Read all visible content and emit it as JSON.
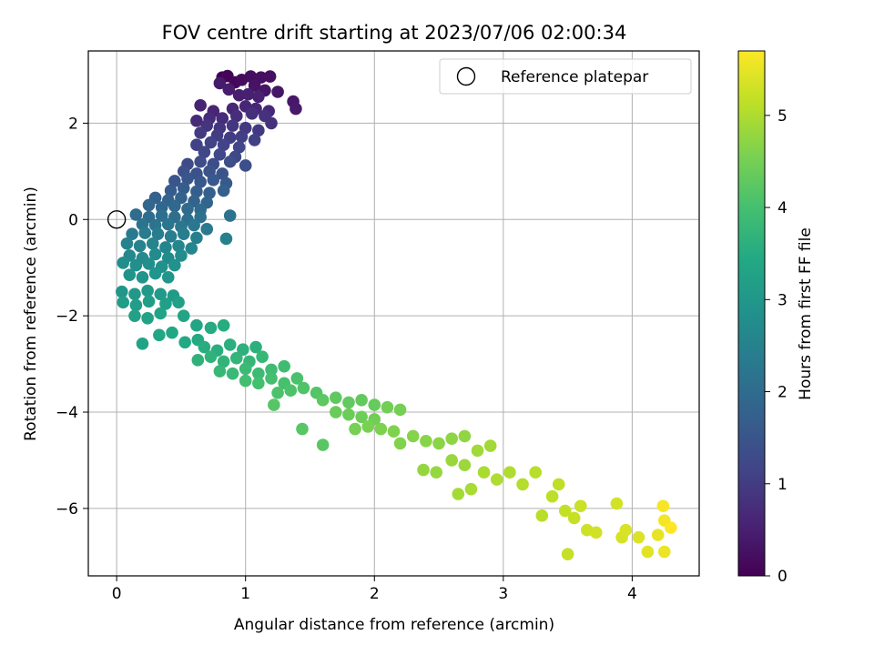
{
  "chart_data": {
    "type": "scatter",
    "title": "FOV centre drift starting at 2023/07/06 02:00:34",
    "xlabel": "Angular distance from reference (arcmin)",
    "ylabel": "Rotation from reference (arcmin)",
    "xlim": [
      -0.22,
      4.52
    ],
    "ylim": [
      -7.4,
      3.5
    ],
    "xticks": [
      0,
      1,
      2,
      3,
      4
    ],
    "yticks": [
      -6,
      -4,
      -2,
      0,
      2
    ],
    "grid": true,
    "legend": {
      "placement": "top-right",
      "entries": [
        "Reference platepar"
      ]
    },
    "reference_point": {
      "x": 0,
      "y": 0
    },
    "colorbar": {
      "label": "Hours from first FF file",
      "range": [
        0,
        5.7
      ],
      "ticks": [
        0,
        1,
        2,
        3,
        4,
        5
      ],
      "colormap": "viridis"
    },
    "series": [
      {
        "points_fields": [
          "x",
          "y",
          "hours"
        ],
        "points": [
          [
            0.82,
            2.95,
            0.0
          ],
          [
            0.86,
            2.98,
            0.05
          ],
          [
            0.92,
            2.85,
            0.1
          ],
          [
            0.97,
            2.9,
            0.15
          ],
          [
            1.04,
            2.97,
            0.2
          ],
          [
            1.12,
            2.95,
            0.22
          ],
          [
            1.19,
            2.97,
            0.25
          ],
          [
            1.07,
            2.78,
            0.3
          ],
          [
            1.15,
            2.68,
            0.32
          ],
          [
            1.25,
            2.65,
            0.35
          ],
          [
            1.37,
            2.45,
            0.38
          ],
          [
            1.39,
            2.3,
            0.4
          ],
          [
            0.8,
            2.83,
            0.42
          ],
          [
            0.87,
            2.7,
            0.45
          ],
          [
            0.95,
            2.58,
            0.48
          ],
          [
            1.02,
            2.6,
            0.5
          ],
          [
            1.1,
            2.55,
            0.52
          ],
          [
            0.65,
            2.37,
            0.55
          ],
          [
            0.75,
            2.25,
            0.58
          ],
          [
            0.9,
            2.3,
            0.6
          ],
          [
            1.0,
            2.35,
            0.6
          ],
          [
            1.08,
            2.3,
            0.62
          ],
          [
            1.18,
            2.25,
            0.65
          ],
          [
            0.62,
            2.05,
            0.68
          ],
          [
            0.72,
            2.1,
            0.7
          ],
          [
            0.82,
            2.1,
            0.72
          ],
          [
            0.93,
            2.15,
            0.75
          ],
          [
            1.05,
            2.2,
            0.78
          ],
          [
            1.15,
            2.15,
            0.8
          ],
          [
            1.2,
            2.0,
            0.82
          ],
          [
            0.7,
            1.95,
            0.85
          ],
          [
            0.8,
            1.9,
            0.88
          ],
          [
            0.9,
            1.95,
            0.9
          ],
          [
            1.0,
            1.9,
            0.92
          ],
          [
            1.1,
            1.85,
            0.95
          ],
          [
            0.65,
            1.8,
            0.98
          ],
          [
            0.78,
            1.75,
            1.0
          ],
          [
            0.88,
            1.7,
            1.02
          ],
          [
            0.97,
            1.72,
            1.05
          ],
          [
            1.07,
            1.65,
            1.08
          ],
          [
            0.62,
            1.55,
            1.1
          ],
          [
            0.73,
            1.6,
            1.12
          ],
          [
            0.83,
            1.55,
            1.15
          ],
          [
            0.95,
            1.5,
            1.18
          ],
          [
            0.68,
            1.4,
            1.2
          ],
          [
            0.8,
            1.35,
            1.22
          ],
          [
            0.92,
            1.3,
            1.25
          ],
          [
            0.55,
            1.15,
            1.28
          ],
          [
            0.65,
            1.2,
            1.3
          ],
          [
            0.75,
            1.15,
            1.32
          ],
          [
            0.88,
            1.2,
            1.35
          ],
          [
            1.0,
            1.12,
            1.38
          ],
          [
            0.52,
            1.0,
            1.4
          ],
          [
            0.62,
            0.95,
            1.42
          ],
          [
            0.72,
            1.0,
            1.45
          ],
          [
            0.82,
            0.95,
            1.48
          ],
          [
            0.45,
            0.8,
            1.5
          ],
          [
            0.55,
            0.85,
            1.52
          ],
          [
            0.65,
            0.78,
            1.55
          ],
          [
            0.75,
            0.82,
            1.58
          ],
          [
            0.85,
            0.75,
            1.6
          ],
          [
            0.42,
            0.6,
            1.62
          ],
          [
            0.52,
            0.65,
            1.65
          ],
          [
            0.62,
            0.58,
            1.68
          ],
          [
            0.72,
            0.55,
            1.7
          ],
          [
            0.83,
            0.6,
            1.72
          ],
          [
            0.3,
            0.45,
            1.75
          ],
          [
            0.4,
            0.4,
            1.78
          ],
          [
            0.5,
            0.45,
            1.8
          ],
          [
            0.6,
            0.38,
            1.82
          ],
          [
            0.7,
            0.35,
            1.85
          ],
          [
            0.25,
            0.3,
            1.88
          ],
          [
            0.35,
            0.25,
            1.9
          ],
          [
            0.45,
            0.28,
            1.92
          ],
          [
            0.55,
            0.22,
            1.95
          ],
          [
            0.65,
            0.2,
            1.98
          ],
          [
            0.15,
            0.1,
            2.0
          ],
          [
            0.25,
            0.05,
            2.02
          ],
          [
            0.35,
            0.08,
            2.05
          ],
          [
            0.45,
            0.05,
            2.08
          ],
          [
            0.55,
            0.0,
            2.1
          ],
          [
            0.65,
            0.05,
            2.12
          ],
          [
            0.88,
            0.08,
            2.15
          ],
          [
            0.2,
            -0.1,
            2.18
          ],
          [
            0.3,
            -0.12,
            2.2
          ],
          [
            0.4,
            -0.1,
            2.22
          ],
          [
            0.5,
            -0.15,
            2.25
          ],
          [
            0.6,
            -0.12,
            2.28
          ],
          [
            0.7,
            -0.2,
            2.3
          ],
          [
            0.12,
            -0.3,
            2.32
          ],
          [
            0.22,
            -0.28,
            2.35
          ],
          [
            0.32,
            -0.3,
            2.38
          ],
          [
            0.42,
            -0.35,
            2.4
          ],
          [
            0.52,
            -0.3,
            2.42
          ],
          [
            0.62,
            -0.38,
            2.45
          ],
          [
            0.85,
            -0.4,
            2.48
          ],
          [
            0.08,
            -0.5,
            2.5
          ],
          [
            0.18,
            -0.55,
            2.52
          ],
          [
            0.28,
            -0.5,
            2.55
          ],
          [
            0.38,
            -0.58,
            2.58
          ],
          [
            0.48,
            -0.55,
            2.6
          ],
          [
            0.58,
            -0.6,
            2.62
          ],
          [
            0.1,
            -0.75,
            2.65
          ],
          [
            0.2,
            -0.8,
            2.68
          ],
          [
            0.3,
            -0.72,
            2.7
          ],
          [
            0.4,
            -0.8,
            2.72
          ],
          [
            0.5,
            -0.75,
            2.75
          ],
          [
            0.05,
            -0.9,
            2.78
          ],
          [
            0.15,
            -0.95,
            2.8
          ],
          [
            0.25,
            -0.92,
            2.82
          ],
          [
            0.35,
            -0.98,
            2.85
          ],
          [
            0.45,
            -0.95,
            2.88
          ],
          [
            0.1,
            -1.15,
            2.9
          ],
          [
            0.2,
            -1.2,
            2.92
          ],
          [
            0.3,
            -1.12,
            2.95
          ],
          [
            0.4,
            -1.2,
            2.98
          ],
          [
            0.04,
            -1.5,
            3.0
          ],
          [
            0.14,
            -1.55,
            3.02
          ],
          [
            0.24,
            -1.48,
            3.05
          ],
          [
            0.34,
            -1.55,
            3.08
          ],
          [
            0.44,
            -1.58,
            3.1
          ],
          [
            0.05,
            -1.72,
            3.12
          ],
          [
            0.15,
            -1.78,
            3.15
          ],
          [
            0.25,
            -1.7,
            3.18
          ],
          [
            0.38,
            -1.75,
            3.2
          ],
          [
            0.48,
            -1.72,
            3.22
          ],
          [
            0.14,
            -2.0,
            3.25
          ],
          [
            0.24,
            -2.05,
            3.28
          ],
          [
            0.34,
            -1.95,
            3.3
          ],
          [
            0.2,
            -2.58,
            3.3
          ],
          [
            0.52,
            -2.0,
            3.32
          ],
          [
            0.62,
            -2.2,
            3.35
          ],
          [
            0.33,
            -2.4,
            3.38
          ],
          [
            0.43,
            -2.35,
            3.4
          ],
          [
            0.53,
            -2.55,
            3.42
          ],
          [
            0.63,
            -2.5,
            3.45
          ],
          [
            0.73,
            -2.25,
            3.48
          ],
          [
            0.83,
            -2.2,
            3.5
          ],
          [
            0.68,
            -2.65,
            3.52
          ],
          [
            0.78,
            -2.72,
            3.55
          ],
          [
            0.88,
            -2.6,
            3.58
          ],
          [
            0.98,
            -2.7,
            3.6
          ],
          [
            1.08,
            -2.65,
            3.62
          ],
          [
            0.63,
            -2.92,
            3.65
          ],
          [
            0.73,
            -2.85,
            3.68
          ],
          [
            0.83,
            -2.95,
            3.7
          ],
          [
            0.93,
            -2.88,
            3.72
          ],
          [
            1.03,
            -2.95,
            3.75
          ],
          [
            1.13,
            -2.85,
            3.78
          ],
          [
            0.8,
            -3.15,
            3.8
          ],
          [
            0.9,
            -3.2,
            3.82
          ],
          [
            1.0,
            -3.1,
            3.85
          ],
          [
            1.1,
            -3.2,
            3.88
          ],
          [
            1.2,
            -3.12,
            3.9
          ],
          [
            1.3,
            -3.05,
            3.92
          ],
          [
            1.0,
            -3.35,
            3.95
          ],
          [
            1.1,
            -3.4,
            3.98
          ],
          [
            1.2,
            -3.3,
            4.0
          ],
          [
            1.3,
            -3.4,
            4.02
          ],
          [
            1.4,
            -3.3,
            4.05
          ],
          [
            1.25,
            -3.6,
            4.08
          ],
          [
            1.35,
            -3.55,
            4.1
          ],
          [
            1.45,
            -3.5,
            4.12
          ],
          [
            1.55,
            -3.6,
            4.15
          ],
          [
            1.22,
            -3.85,
            4.18
          ],
          [
            1.44,
            -4.35,
            4.2
          ],
          [
            1.6,
            -4.68,
            4.22
          ],
          [
            1.6,
            -3.75,
            4.25
          ],
          [
            1.7,
            -3.7,
            4.28
          ],
          [
            1.8,
            -3.8,
            4.3
          ],
          [
            1.9,
            -3.75,
            4.32
          ],
          [
            2.0,
            -3.85,
            4.35
          ],
          [
            1.7,
            -4.0,
            4.38
          ],
          [
            1.8,
            -4.05,
            4.4
          ],
          [
            1.9,
            -4.1,
            4.42
          ],
          [
            2.0,
            -4.15,
            4.45
          ],
          [
            2.1,
            -3.9,
            4.48
          ],
          [
            2.2,
            -3.95,
            4.5
          ],
          [
            1.85,
            -4.35,
            4.52
          ],
          [
            1.95,
            -4.3,
            4.55
          ],
          [
            2.05,
            -4.35,
            4.58
          ],
          [
            2.15,
            -4.4,
            4.6
          ],
          [
            2.2,
            -4.65,
            4.62
          ],
          [
            2.3,
            -4.5,
            4.65
          ],
          [
            2.4,
            -4.6,
            4.68
          ],
          [
            2.5,
            -4.65,
            4.7
          ],
          [
            2.6,
            -4.55,
            4.72
          ],
          [
            2.7,
            -4.5,
            4.75
          ],
          [
            2.38,
            -5.2,
            4.78
          ],
          [
            2.48,
            -5.25,
            4.8
          ],
          [
            2.6,
            -5.0,
            4.82
          ],
          [
            2.7,
            -5.1,
            4.85
          ],
          [
            2.8,
            -4.8,
            4.88
          ],
          [
            2.9,
            -4.7,
            4.9
          ],
          [
            2.65,
            -5.7,
            4.92
          ],
          [
            2.75,
            -5.6,
            4.95
          ],
          [
            2.85,
            -5.25,
            4.98
          ],
          [
            2.95,
            -5.4,
            5.0
          ],
          [
            3.05,
            -5.25,
            5.02
          ],
          [
            3.15,
            -5.5,
            5.05
          ],
          [
            3.25,
            -5.25,
            5.08
          ],
          [
            3.3,
            -6.15,
            5.1
          ],
          [
            3.38,
            -5.75,
            5.12
          ],
          [
            3.43,
            -5.5,
            5.15
          ],
          [
            3.48,
            -6.05,
            5.18
          ],
          [
            3.5,
            -6.95,
            5.2
          ],
          [
            3.55,
            -6.2,
            5.22
          ],
          [
            3.6,
            -5.95,
            5.25
          ],
          [
            3.65,
            -6.45,
            5.28
          ],
          [
            3.72,
            -6.5,
            5.3
          ],
          [
            3.88,
            -5.9,
            5.32
          ],
          [
            3.92,
            -6.6,
            5.35
          ],
          [
            3.95,
            -6.45,
            5.38
          ],
          [
            4.05,
            -6.6,
            5.4
          ],
          [
            4.12,
            -6.9,
            5.45
          ],
          [
            4.2,
            -6.55,
            5.5
          ],
          [
            4.25,
            -6.9,
            5.55
          ],
          [
            4.25,
            -6.25,
            5.6
          ],
          [
            4.24,
            -5.95,
            5.65
          ],
          [
            4.3,
            -6.4,
            5.7
          ]
        ]
      }
    ]
  }
}
